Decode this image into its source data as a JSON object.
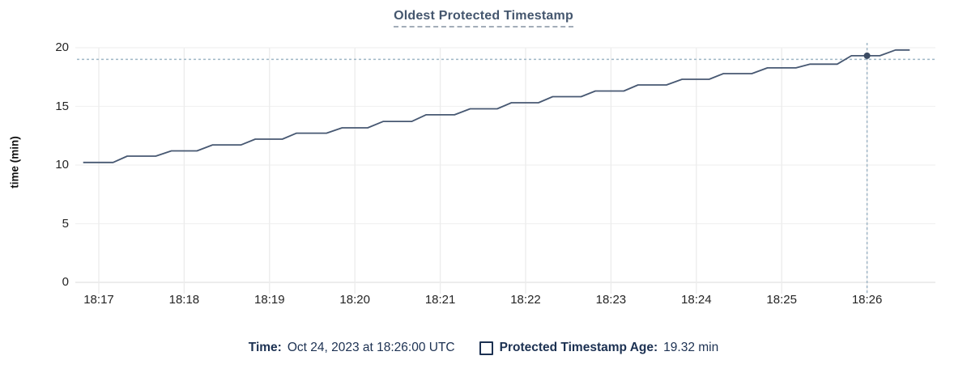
{
  "title": "Oldest Protected Timestamp",
  "y_axis_label": "time (min)",
  "legend": {
    "time_label": "Time:",
    "time_value": "Oct 24, 2023 at 18:26:00 UTC",
    "series_label": "Protected Timestamp Age:",
    "series_value": "19.32 min"
  },
  "colors": {
    "title_text": "#44566e",
    "line": "#475872",
    "dot": "#3c4c63",
    "crosshair": "#9fb6c6",
    "grid_horizontal": "#f1f1f1",
    "grid_vertical": "#ececec",
    "axis_line": "#e2e2e2",
    "tick_text": "#242424",
    "legend_text": "#1c3152"
  },
  "chart_data": {
    "type": "line",
    "title": "Oldest Protected Timestamp",
    "xlabel": "",
    "ylabel": "time (min)",
    "ylim": [
      0,
      20
    ],
    "yticks": [
      0,
      5,
      10,
      15,
      20
    ],
    "xticks": [
      "18:17",
      "18:18",
      "18:19",
      "18:20",
      "18:21",
      "18:22",
      "18:23",
      "18:24",
      "18:25",
      "18:26"
    ],
    "grid": true,
    "legend_position": "bottom",
    "series": [
      {
        "name": "Protected Timestamp Age",
        "unit": "min",
        "points": [
          [
            "18:16:49",
            10.22
          ],
          [
            "18:17:10",
            10.22
          ],
          [
            "18:17:20",
            10.76
          ],
          [
            "18:17:40",
            10.76
          ],
          [
            "18:17:51",
            11.21
          ],
          [
            "18:18:09",
            11.21
          ],
          [
            "18:18:20",
            11.72
          ],
          [
            "18:18:40",
            11.72
          ],
          [
            "18:18:50",
            12.21
          ],
          [
            "18:19:09",
            12.21
          ],
          [
            "18:19:19",
            12.72
          ],
          [
            "18:19:40",
            12.72
          ],
          [
            "18:19:51",
            13.17
          ],
          [
            "18:20:09",
            13.17
          ],
          [
            "18:20:20",
            13.72
          ],
          [
            "18:20:40",
            13.72
          ],
          [
            "18:20:50",
            14.28
          ],
          [
            "18:21:10",
            14.28
          ],
          [
            "18:21:21",
            14.79
          ],
          [
            "18:21:40",
            14.79
          ],
          [
            "18:21:50",
            15.31
          ],
          [
            "18:22:09",
            15.31
          ],
          [
            "18:22:19",
            15.83
          ],
          [
            "18:22:39",
            15.83
          ],
          [
            "18:22:49",
            16.31
          ],
          [
            "18:23:09",
            16.31
          ],
          [
            "18:23:19",
            16.83
          ],
          [
            "18:23:39",
            16.83
          ],
          [
            "18:23:50",
            17.31
          ],
          [
            "18:24:09",
            17.31
          ],
          [
            "18:24:19",
            17.79
          ],
          [
            "18:24:39",
            17.79
          ],
          [
            "18:24:50",
            18.28
          ],
          [
            "18:25:10",
            18.28
          ],
          [
            "18:25:20",
            18.6
          ],
          [
            "18:25:39",
            18.6
          ],
          [
            "18:25:49",
            19.32
          ],
          [
            "18:26:09",
            19.32
          ],
          [
            "18:26:20",
            19.81
          ],
          [
            "18:26:30",
            19.81
          ]
        ]
      }
    ],
    "hover": {
      "time": "18:26:00",
      "date": "Oct 24, 2023",
      "value": 19.32,
      "value_label": "19.32 min",
      "crosshair": true
    }
  }
}
